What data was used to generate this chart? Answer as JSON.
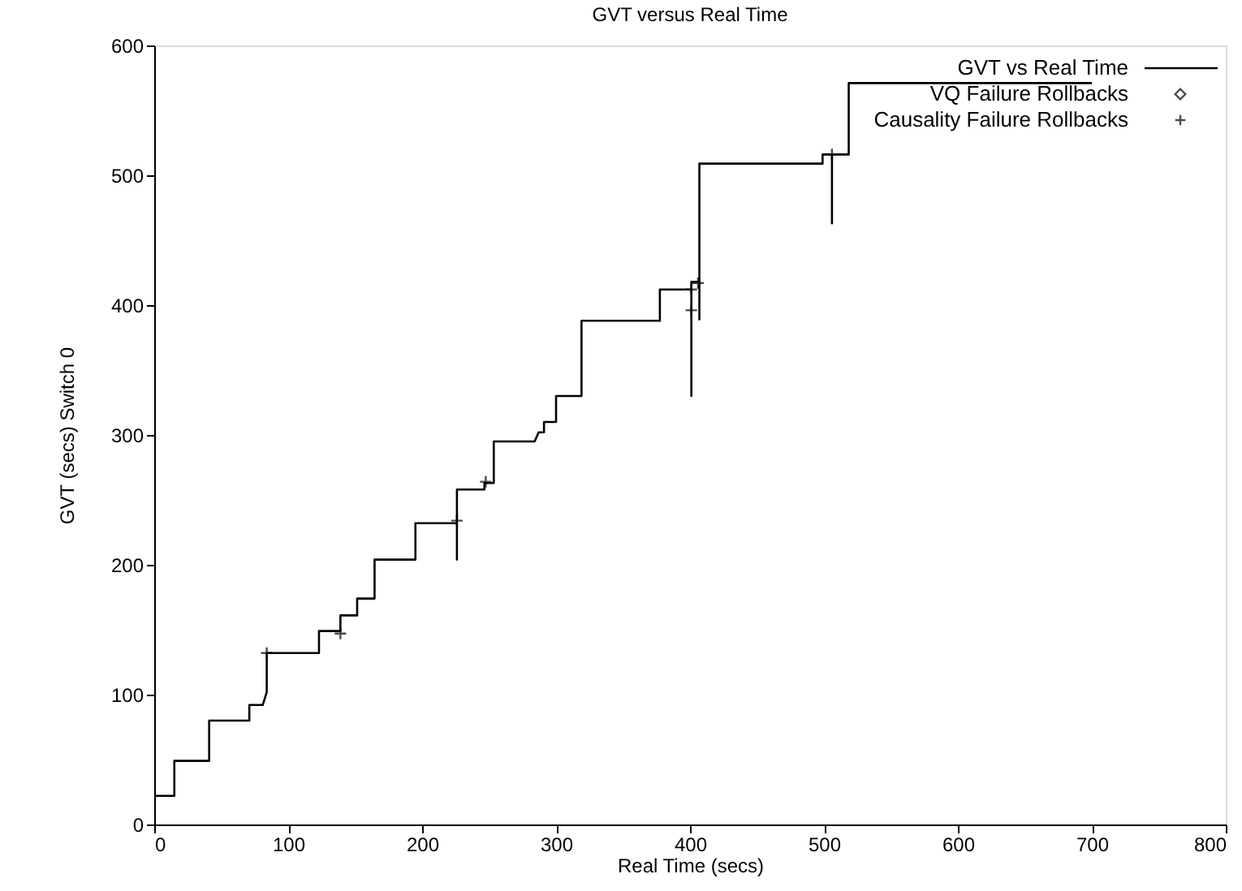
{
  "chart_data": {
    "type": "line",
    "title": "GVT versus Real Time",
    "xlabel": "Real Time (secs)",
    "ylabel": "GVT (secs) Switch 0",
    "xlim": [
      0,
      800
    ],
    "xticks": [
      0,
      100,
      200,
      300,
      400,
      500,
      600,
      700,
      800
    ],
    "ylim": [
      0,
      600
    ],
    "yticks": [
      0,
      100,
      200,
      300,
      400,
      500,
      600
    ],
    "grid": false,
    "legend": "top right",
    "series": [
      {
        "name": "GVT vs Real Time",
        "type": "step",
        "color": "#000000",
        "marker": "none",
        "line_style": "solid",
        "x": [
          0,
          15,
          15,
          41,
          41,
          71,
          71,
          81,
          84,
          84,
          123,
          123,
          139,
          139,
          151.5,
          151.5,
          164.5,
          164.5,
          195,
          195,
          226,
          226,
          226,
          246.5,
          246.5,
          253.5,
          253.5,
          284,
          287,
          291,
          291,
          300,
          300,
          319,
          319,
          377.5,
          377.5,
          401,
          401,
          401,
          407,
          407,
          407,
          499,
          499,
          506,
          506,
          506,
          518.5,
          518.5,
          700
        ],
        "values": [
          22,
          22,
          49,
          49,
          80,
          80,
          92,
          92,
          102,
          132,
          132,
          149,
          149,
          161,
          161,
          174,
          174,
          204,
          204,
          232,
          232,
          204,
          258,
          258,
          263,
          263,
          295,
          295,
          302,
          302,
          310,
          310,
          330,
          330,
          388,
          388,
          412,
          412,
          330,
          418,
          418,
          389,
          509,
          509,
          516,
          516,
          463,
          516,
          516,
          571,
          571
        ]
      },
      {
        "name": "VQ Failure Rollbacks",
        "type": "scatter",
        "color": "#000000",
        "marker": "diamond"
      },
      {
        "name": "Causality Failure Rollbacks",
        "type": "scatter",
        "color": "#000000",
        "marker": "cross",
        "x": [
          84,
          139,
          226,
          247.5,
          401,
          401,
          406,
          506
        ],
        "values": [
          132,
          147,
          234,
          264,
          396,
          412,
          417,
          516
        ]
      }
    ]
  }
}
